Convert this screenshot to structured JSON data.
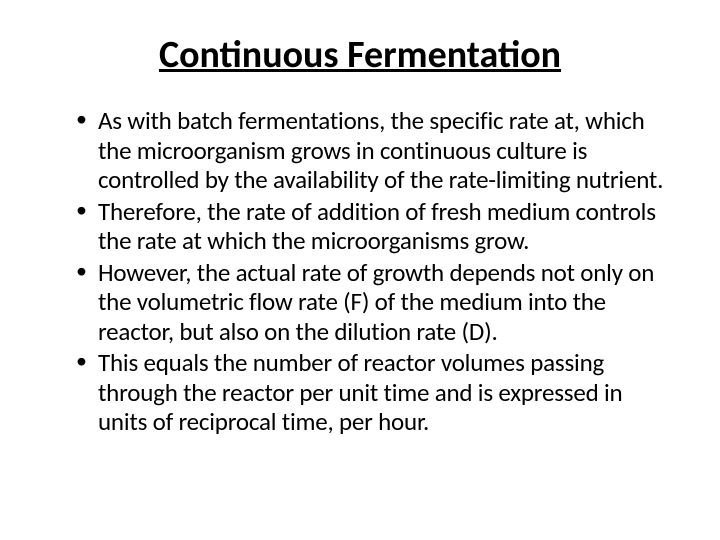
{
  "slide": {
    "title": "Continuous Fermentation",
    "title_fontsize": 38,
    "title_fontweight": 700,
    "title_underline": true,
    "title_color": "#000000",
    "background_color": "#ffffff",
    "body_fontsize": 25,
    "body_color": "#000000",
    "bullets": [
      "As with batch fermentations, the specific rate at, which the microorganism grows in continuous culture is controlled by the availability of the rate-limiting nutrient.",
      "Therefore, the rate of addition of fresh medium controls the rate at which the microorganisms grow.",
      " However, the actual rate of growth depends not only on the volumetric flow rate (F) of the medium into the reactor, but also on the dilution rate (D).",
      "This equals the number of reactor volumes passing through the reactor per unit time and is expressed in units of reciprocal time, per hour."
    ]
  }
}
